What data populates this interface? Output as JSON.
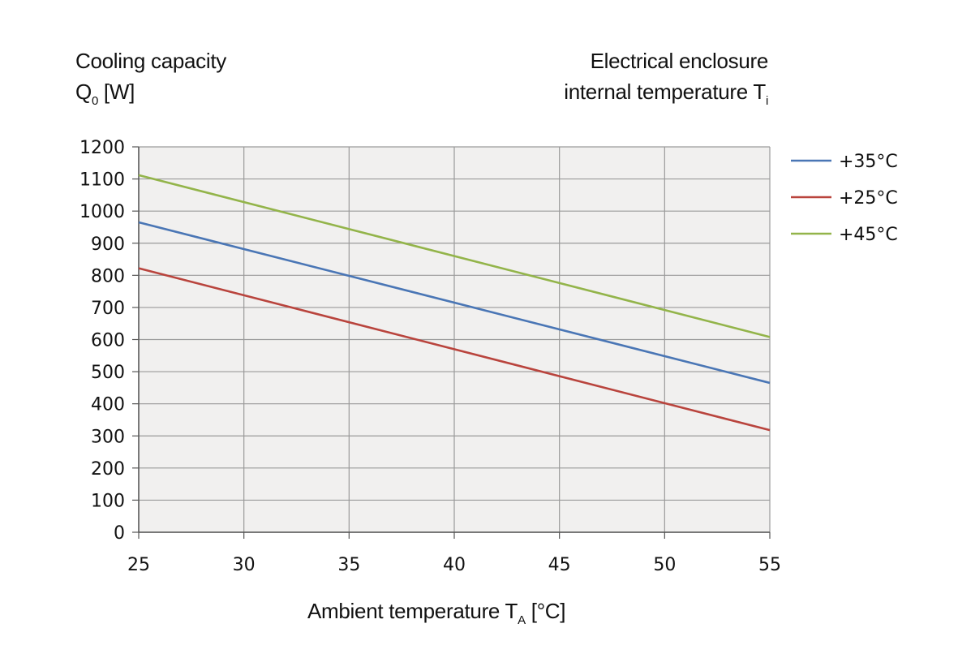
{
  "chart_data": {
    "type": "line",
    "title": "",
    "ylabel_line1": "Cooling capacity",
    "ylabel_symbol": "Q",
    "ylabel_sub": "0",
    "ylabel_unit": "[W]",
    "legend_title_line1": "Electrical enclosure",
    "legend_title_line2": "internal temperature T",
    "legend_title_sub": "i",
    "xlabel_main": "Ambient temperature T",
    "xlabel_sub": "A",
    "xlabel_unit": "[°C]",
    "xlim": [
      25,
      55
    ],
    "ylim": [
      0,
      1200
    ],
    "x_ticks": [
      25,
      30,
      35,
      40,
      45,
      50,
      55
    ],
    "y_ticks": [
      0,
      100,
      200,
      300,
      400,
      500,
      600,
      700,
      800,
      900,
      1000,
      1100,
      1200
    ],
    "grid": true,
    "legend_position": "right",
    "series": [
      {
        "name": "+35°C",
        "x": [
          25,
          55
        ],
        "values": [
          965,
          465
        ],
        "color": "#4a76b5"
      },
      {
        "name": "+25°C",
        "x": [
          25,
          55
        ],
        "values": [
          822,
          318
        ],
        "color": "#b9443d"
      },
      {
        "name": "+45°C",
        "x": [
          25,
          55
        ],
        "values": [
          1112,
          608
        ],
        "color": "#93b44a"
      }
    ],
    "colors": {
      "plot_bg": "#f1f0ef",
      "grid": "#9a9a9a",
      "axis": "#555555"
    }
  }
}
